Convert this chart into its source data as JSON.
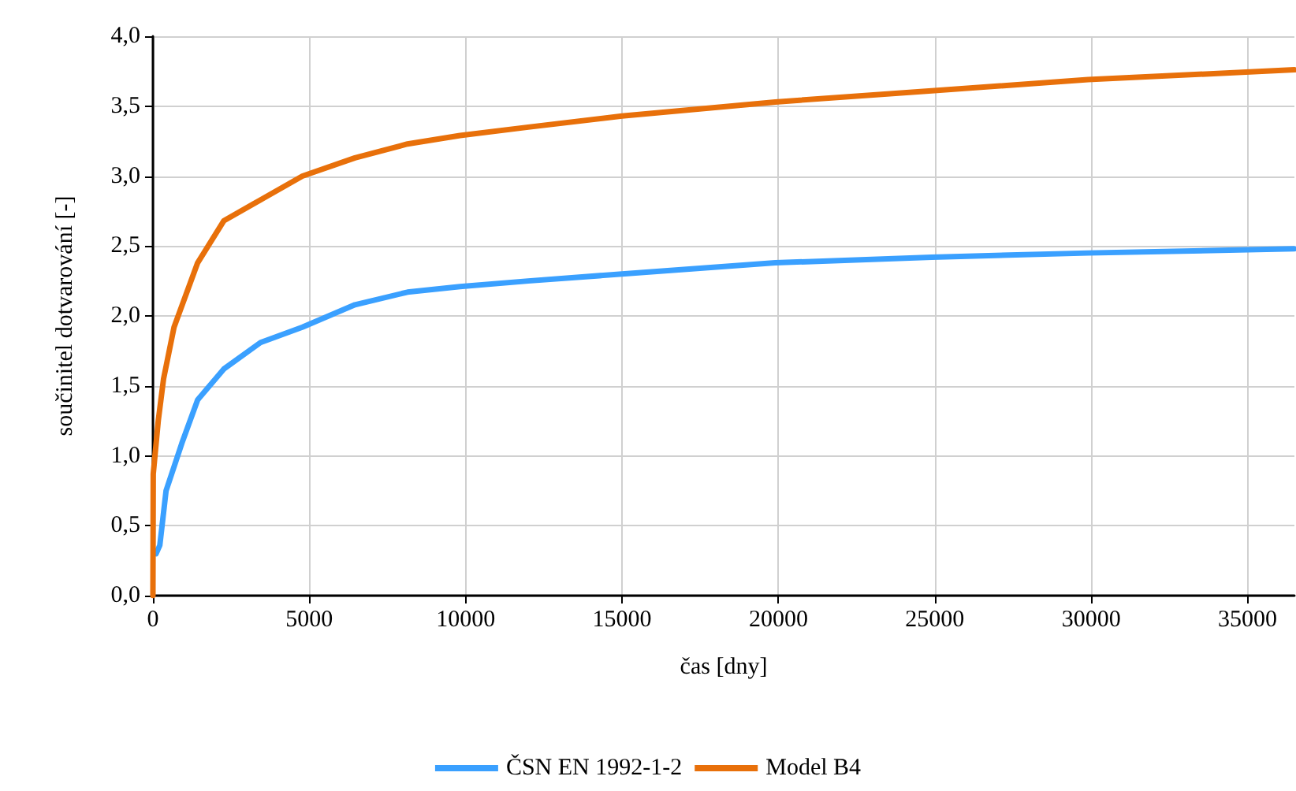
{
  "chart_data": {
    "type": "line",
    "xlabel": "čas [dny]",
    "ylabel": "součinitel dotvarování [-]",
    "xlim": [
      0,
      36500
    ],
    "xticks": [
      0,
      5000,
      10000,
      15000,
      20000,
      25000,
      30000,
      35000
    ],
    "ylim": [
      0,
      4
    ],
    "yticks": [
      {
        "value": 0,
        "label": "0,0"
      },
      {
        "value": 0.5,
        "label": "0,5"
      },
      {
        "value": 1,
        "label": "1,0"
      },
      {
        "value": 1.5,
        "label": "1,5"
      },
      {
        "value": 2,
        "label": "2,0"
      },
      {
        "value": 2.5,
        "label": "2,5"
      },
      {
        "value": 3,
        "label": "3,0"
      },
      {
        "value": 3.5,
        "label": "3,5"
      },
      {
        "value": 4,
        "label": "4,0"
      }
    ],
    "grid": true,
    "legend": "bottom",
    "marker": "none",
    "line_style": "solid",
    "series": [
      {
        "name": "ČSN EN 1992-1-2",
        "color": "#3aa0ff",
        "x": [
          100,
          220,
          420,
          925,
          1430,
          2265,
          3440,
          4780,
          6460,
          8140,
          9820,
          12000,
          15000,
          19900,
          24900,
          29900,
          36500
        ],
        "values": [
          0.3,
          0.36,
          0.75,
          1.09,
          1.4,
          1.62,
          1.81,
          1.92,
          2.08,
          2.17,
          2.21,
          2.25,
          2.3,
          2.38,
          2.42,
          2.45,
          2.48
        ]
      },
      {
        "name": "Model B4",
        "color": "#e8700a",
        "x": [
          0,
          10,
          170,
          340,
          675,
          1430,
          2265,
          3440,
          4780,
          6460,
          8140,
          9820,
          12000,
          15000,
          19900,
          24900,
          29900,
          36500
        ],
        "values": [
          0,
          0.87,
          1.25,
          1.55,
          1.92,
          2.38,
          2.68,
          2.83,
          3.0,
          3.13,
          3.23,
          3.29,
          3.35,
          3.43,
          3.53,
          3.61,
          3.69,
          3.76
        ]
      }
    ]
  }
}
